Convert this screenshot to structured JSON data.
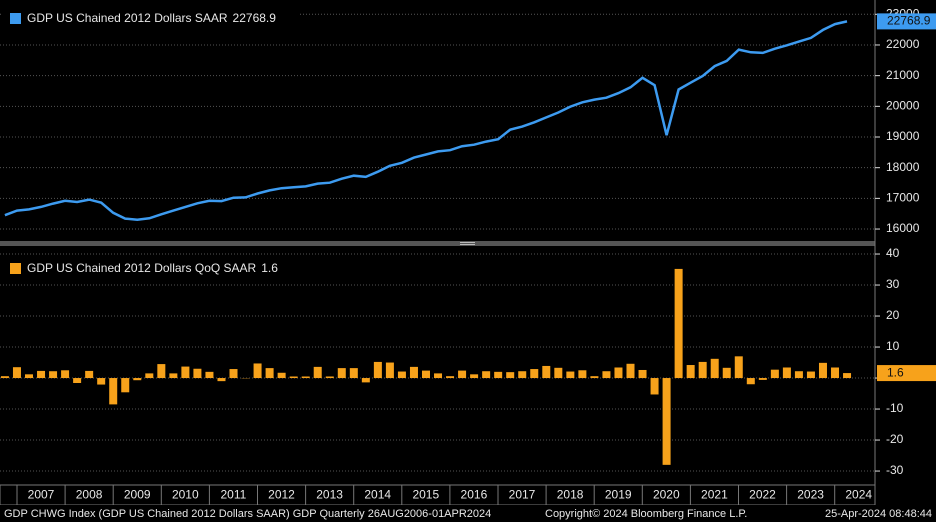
{
  "chart_data": [
    {
      "type": "line",
      "series": [
        {
          "name": "GDP US Chained 2012 Dollars SAAR",
          "color": "#3d9bf0",
          "values": [
            16450,
            16600,
            16640,
            16720,
            16830,
            16920,
            16880,
            16960,
            16860,
            16530,
            16340,
            16300,
            16350,
            16480,
            16600,
            16720,
            16840,
            16920,
            16910,
            17020,
            17030,
            17160,
            17260,
            17330,
            17360,
            17390,
            17480,
            17510,
            17640,
            17740,
            17700,
            17870,
            18060,
            18160,
            18330,
            18430,
            18530,
            18570,
            18700,
            18750,
            18850,
            18930,
            19240,
            19340,
            19480,
            19640,
            19800,
            19990,
            20130,
            20220,
            20280,
            20430,
            20620,
            20930,
            20690,
            19060,
            20550,
            20770,
            20990,
            21310,
            21480,
            21850,
            21760,
            21740,
            21880,
            21990,
            22110,
            22230,
            22490,
            22680,
            22768.9
          ]
        }
      ],
      "ylim": [
        15610,
        23466
      ],
      "yticks": [
        16000,
        17000,
        18000,
        19000,
        20000,
        21000,
        22000,
        23000
      ],
      "grid": true
    },
    {
      "type": "bar",
      "series": [
        {
          "name": "GDP US Chained 2012 Dollars QoQ SAAR",
          "color": "#f7a21b",
          "values": [
            0.6,
            3.5,
            1.2,
            2.3,
            2.2,
            2.5,
            -1.6,
            2.3,
            -2.1,
            -8.5,
            -4.6,
            -0.7,
            1.5,
            4.5,
            1.5,
            3.7,
            3.0,
            2.0,
            -1.0,
            2.9,
            -0.1,
            4.7,
            3.2,
            1.7,
            0.5,
            0.5,
            3.6,
            0.5,
            3.2,
            3.2,
            -1.4,
            5.2,
            5.0,
            2.1,
            3.6,
            2.4,
            1.5,
            0.6,
            2.4,
            1.2,
            2.2,
            2.0,
            1.9,
            2.2,
            2.9,
            3.9,
            3.3,
            2.1,
            2.5,
            0.6,
            2.2,
            3.4,
            4.6,
            2.6,
            -5.3,
            -28.0,
            35.2,
            4.2,
            5.2,
            6.2,
            3.3,
            7.0,
            -2.0,
            -0.6,
            2.7,
            3.4,
            2.2,
            2.1,
            4.9,
            3.4,
            1.6
          ]
        }
      ],
      "ylim": [
        -34.5,
        41.3
      ],
      "yticks": [
        -30,
        -20,
        -10,
        0,
        10,
        20,
        30,
        40
      ],
      "grid": true
    }
  ],
  "x_axis": {
    "labels": [
      2007,
      2008,
      2009,
      2010,
      2011,
      2012,
      2013,
      2014,
      2015,
      2016,
      2017,
      2018,
      2019,
      2020,
      2021,
      2022,
      2023,
      2024
    ]
  },
  "footer": {
    "source": "GDP CHWG Index (GDP US Chained 2012 Dollars SAAR) GDP  Quarterly 26AUG2006-01APR2024",
    "copyright": "Copyright© 2024 Bloomberg Finance L.P.",
    "timestamp": "25-Apr-2024 08:48:44"
  }
}
